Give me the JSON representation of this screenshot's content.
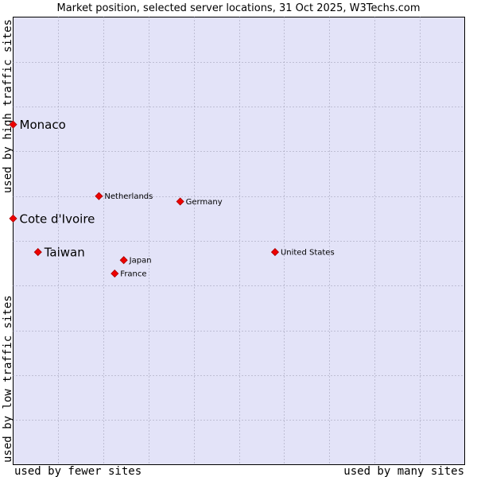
{
  "chart_data": {
    "type": "scatter",
    "title": "Market position, selected server locations, 31 Oct 2025, W3Techs.com",
    "xlabel_low": "used by fewer sites",
    "xlabel_high": "used by many sites",
    "ylabel_low": "used by low traffic sites",
    "ylabel_high": "used by high traffic sites",
    "xlim": [
      0,
      10
    ],
    "ylim": [
      0,
      10
    ],
    "grid": true,
    "colors": {
      "plot_bg": "#e3e3f8",
      "grid": "#9a9ab0",
      "marker": "#ee0000",
      "marker_edge": "#aa0000"
    },
    "points": [
      {
        "label": "Monaco",
        "x": 0.0,
        "y": 7.6,
        "emphasis": true
      },
      {
        "label": "Cote d'Ivoire",
        "x": 0.0,
        "y": 5.5,
        "emphasis": true
      },
      {
        "label": "Taiwan",
        "x": 0.55,
        "y": 4.75,
        "emphasis": true
      },
      {
        "label": "Netherlands",
        "x": 1.9,
        "y": 6.0,
        "emphasis": false
      },
      {
        "label": "Germany",
        "x": 3.7,
        "y": 5.88,
        "emphasis": false
      },
      {
        "label": "United States",
        "x": 5.8,
        "y": 4.75,
        "emphasis": false
      },
      {
        "label": "Japan",
        "x": 2.45,
        "y": 4.57,
        "emphasis": false
      },
      {
        "label": "France",
        "x": 2.25,
        "y": 4.27,
        "emphasis": false
      }
    ]
  }
}
